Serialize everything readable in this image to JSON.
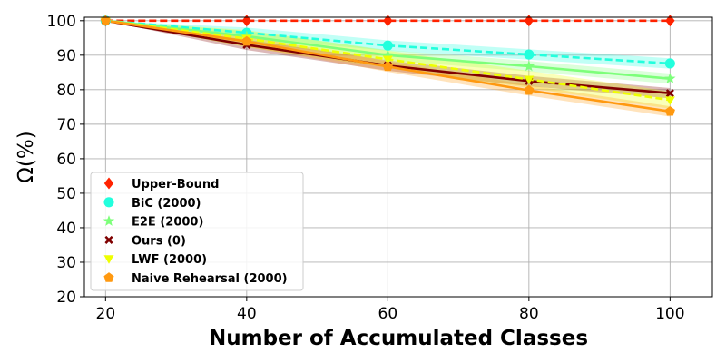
{
  "chart_data": {
    "type": "line",
    "title": "",
    "xlabel": "Number of Accumulated Classes",
    "ylabel": "Ω(%)",
    "x": [
      20,
      40,
      60,
      80,
      100
    ],
    "xticks": [
      20,
      40,
      60,
      80,
      100
    ],
    "yticks": [
      20,
      30,
      40,
      50,
      60,
      70,
      80,
      90,
      100
    ],
    "xlim": [
      17,
      106
    ],
    "ylim": [
      20,
      101
    ],
    "grid": true,
    "legend_position": "lower-left",
    "series": [
      {
        "name": "Upper-Bound",
        "values": [
          100,
          100,
          100,
          100,
          100
        ],
        "color": "#ff2200",
        "marker": "diamond",
        "dashed": true,
        "band": 0
      },
      {
        "name": "BiC (2000)",
        "values": [
          100,
          96.5,
          92.8,
          90.2,
          87.6
        ],
        "color": "#22ffdd",
        "marker": "circle",
        "dashed": true,
        "band": 1.5
      },
      {
        "name": "E2E (2000)",
        "values": [
          100,
          95.5,
          90.0,
          86.8,
          83.2
        ],
        "color": "#7dff7a",
        "marker": "star",
        "dashed": false,
        "band": 1.5
      },
      {
        "name": "Ours (0)",
        "values": [
          100,
          93.0,
          87.0,
          82.5,
          79.0
        ],
        "color": "#800000",
        "marker": "x",
        "dashed": false,
        "band": 1.5
      },
      {
        "name": "LWF (2000)",
        "values": [
          100,
          94.8,
          88.8,
          83.0,
          77.0
        ],
        "color": "#eeff00",
        "marker": "triangle-down",
        "dashed": true,
        "band": 2.5
      },
      {
        "name": "Naive Rehearsal (2000)",
        "values": [
          100,
          94.0,
          86.7,
          79.8,
          73.7
        ],
        "color": "#ff9910",
        "marker": "pentagon",
        "dashed": false,
        "band": 1.5
      }
    ]
  }
}
